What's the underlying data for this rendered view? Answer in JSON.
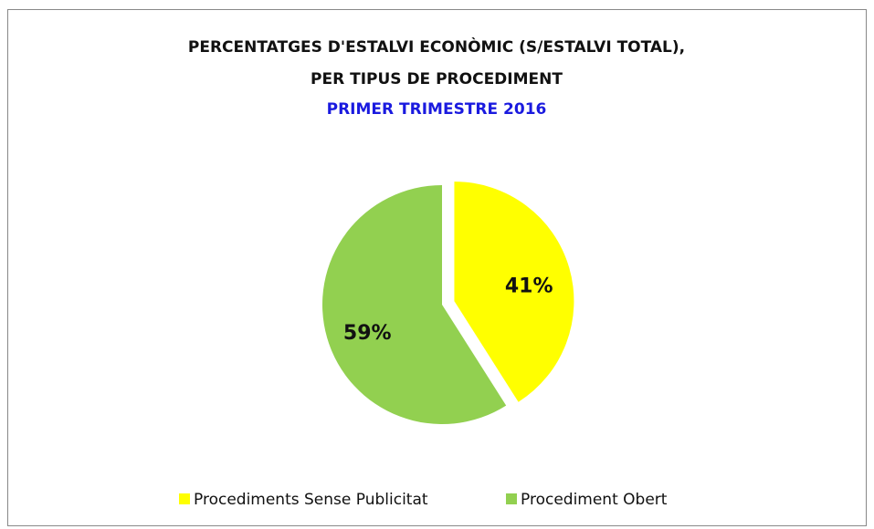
{
  "chart_data": {
    "type": "pie",
    "title": [
      "PERCENTATGES D'ESTALVI ECONÒMIC (S/ESTALVI TOTAL),",
      "PER TIPUS DE PROCEDIMENT"
    ],
    "subtitle": "PRIMER TRIMESTRE 2016",
    "categories": [
      "Procediments Sense Publicitat",
      "Procediment Obert"
    ],
    "values": [
      41,
      59
    ],
    "value_labels": [
      "41%",
      "59%"
    ],
    "colors": [
      "#ffff00",
      "#92d050"
    ],
    "exploded": [
      true,
      false
    ],
    "legend": "bottom"
  }
}
